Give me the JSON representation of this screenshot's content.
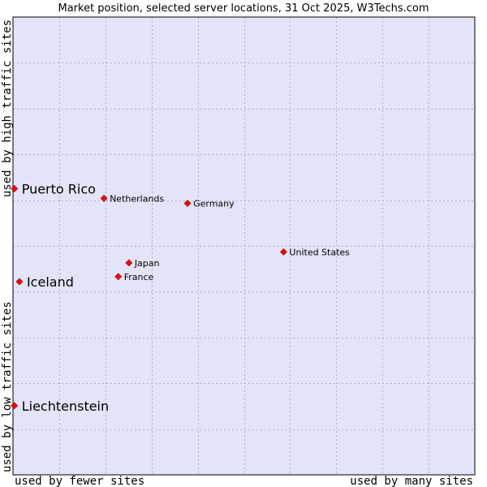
{
  "chart_data": {
    "type": "scatter",
    "title": "Market position, selected server locations, 31 Oct 2025, W3Techs.com",
    "x_axis": {
      "label_left": "used by fewer sites",
      "label_right": "used by many sites",
      "range": [
        0,
        100
      ]
    },
    "y_axis": {
      "label_bottom": "used by low traffic sites",
      "label_top": "used by high traffic sites",
      "range": [
        0,
        100
      ]
    },
    "grid": true,
    "colors": {
      "plot_background": "#e4e4f8",
      "grid": "#b0b0c4",
      "marker": "#ff0000",
      "marker_edge": "#8b0000",
      "frame": "#000000"
    },
    "points": [
      {
        "label": "Puerto Rico",
        "x": 0.3,
        "y": 62.5,
        "highlight": true
      },
      {
        "label": "Iceland",
        "x": 1.4,
        "y": 42.2,
        "highlight": true
      },
      {
        "label": "Liechtenstein",
        "x": 0.3,
        "y": 15.1,
        "highlight": true
      },
      {
        "label": "Netherlands",
        "x": 19.7,
        "y": 60.4,
        "highlight": false
      },
      {
        "label": "Germany",
        "x": 37.8,
        "y": 59.3,
        "highlight": false
      },
      {
        "label": "Japan",
        "x": 25.1,
        "y": 46.3,
        "highlight": false
      },
      {
        "label": "France",
        "x": 22.8,
        "y": 43.3,
        "highlight": false
      },
      {
        "label": "United States",
        "x": 58.6,
        "y": 48.7,
        "highlight": false
      }
    ]
  }
}
